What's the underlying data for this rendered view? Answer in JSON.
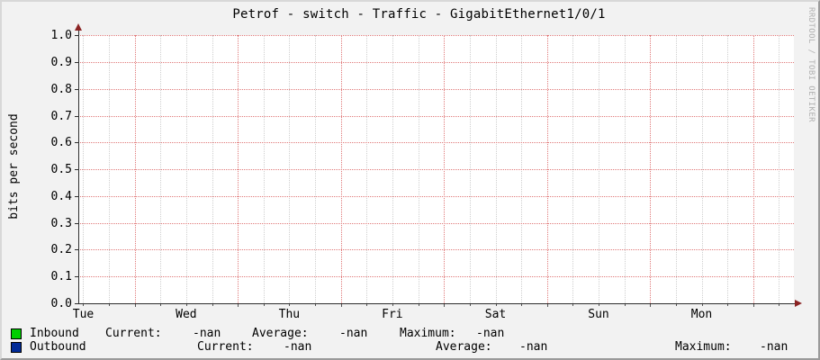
{
  "chart_data": {
    "type": "line",
    "title": "Petrof - switch - Traffic - GigabitEthernet1/0/1",
    "ylabel": "bits per second",
    "ylim": [
      0.0,
      1.0
    ],
    "ytick_step": 0.1,
    "yticks": [
      "1.0",
      "0.9",
      "0.8",
      "0.7",
      "0.6",
      "0.5",
      "0.4",
      "0.3",
      "0.2",
      "0.1",
      "0.0"
    ],
    "categories": [
      "Tue",
      "Wed",
      "Thu",
      "Fri",
      "Sat",
      "Sun",
      "Mon"
    ],
    "grid": true,
    "legend_position": "bottom",
    "series": [
      {
        "name": "Inbound",
        "color": "#00CF00",
        "values": []
      },
      {
        "name": "Outbound",
        "color": "#002A97",
        "values": []
      }
    ]
  },
  "legend": {
    "rows": [
      {
        "name": "Inbound",
        "color": "#00CF00",
        "stats": [
          {
            "label": "Current:",
            "value": "-nan"
          },
          {
            "label": "Average:",
            "value": "-nan"
          },
          {
            "label": "Maximum:",
            "value": "-nan"
          }
        ]
      },
      {
        "name": "Outbound",
        "color": "#002A97",
        "stats": [
          {
            "label": "Current:",
            "value": "-nan"
          },
          {
            "label": "Average:",
            "value": "-nan"
          },
          {
            "label": "Maximum:",
            "value": "-nan"
          }
        ]
      }
    ]
  },
  "watermark": "RRDTOOL / TOBI OETIKER",
  "colors": {
    "major_grid": "#e07a7a",
    "minor_grid": "#cfcfcf",
    "axis": "#2e2e2e",
    "arrow": "#8b2323",
    "background": "#f2f2f2",
    "canvas": "#ffffff"
  }
}
